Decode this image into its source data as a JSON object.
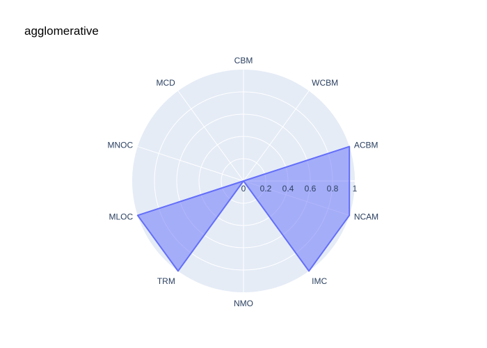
{
  "chart_data": {
    "type": "polar-area",
    "title": "agglomerative",
    "categories": [
      "CBM",
      "WCBM",
      "ACBM",
      "NCAM",
      "IMC",
      "NMO",
      "TRM",
      "MLOC",
      "MNOC",
      "MCD"
    ],
    "series": [
      {
        "values": [
          0,
          0,
          1,
          1,
          1,
          0,
          1,
          1,
          0,
          0
        ]
      }
    ],
    "radial_range": [
      0,
      1
    ],
    "radial_ticks": [
      "0",
      "0.2",
      "0.4",
      "0.6",
      "0.8",
      "1"
    ],
    "radial_tick_values": [
      0,
      0.2,
      0.4,
      0.6,
      0.8,
      1
    ],
    "angular_rotation": "clockwise from top",
    "grid": true,
    "colors": {
      "background": "#e5ecf6",
      "grid": "#ffffff",
      "fill": "#636efa",
      "line": "#636efa",
      "text": "#2a3f5f"
    }
  }
}
